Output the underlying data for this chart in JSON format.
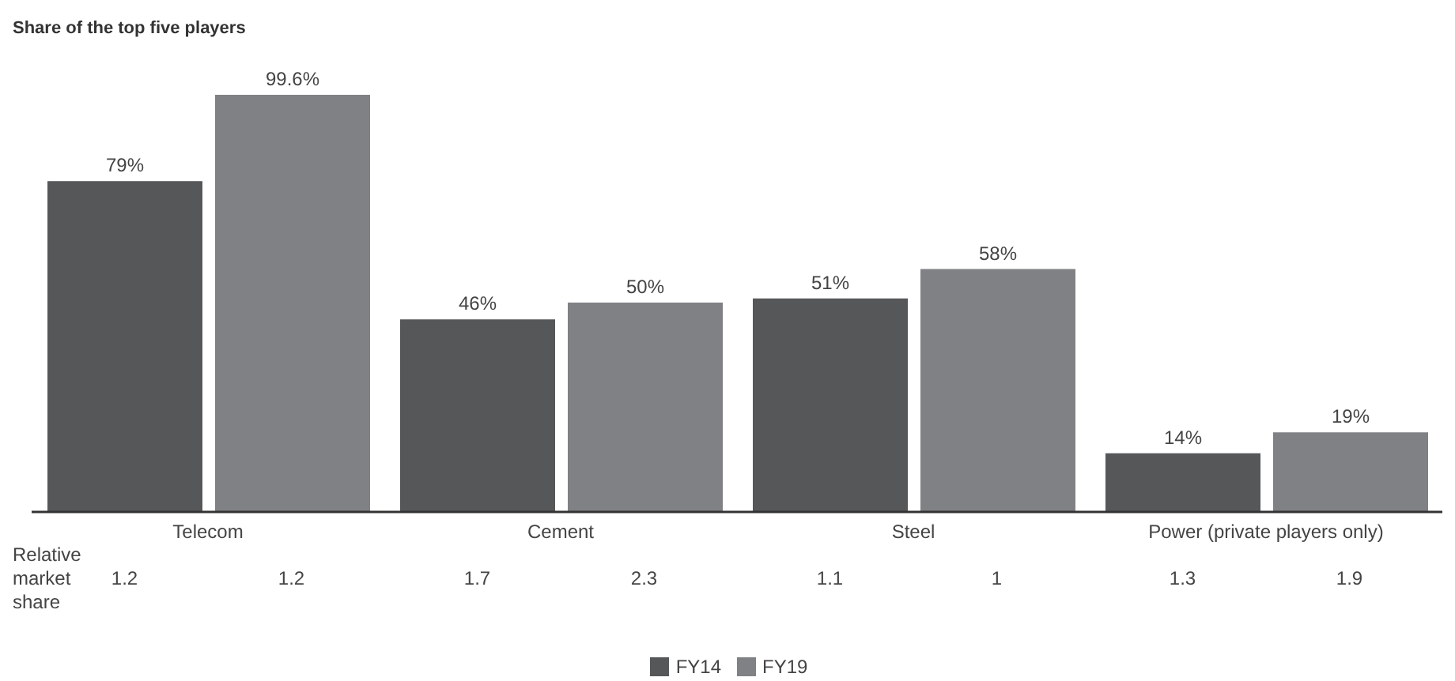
{
  "chart_data": {
    "type": "bar",
    "title": "Share of the top five players",
    "categories": [
      "Telecom",
      "Cement",
      "Steel",
      "Power (private players only)"
    ],
    "series": [
      {
        "name": "FY14",
        "color": "#555759",
        "values": [
          79,
          46,
          51,
          14
        ],
        "value_labels": [
          "79%",
          "46%",
          "51%",
          "14%"
        ]
      },
      {
        "name": "FY19",
        "color": "#808184",
        "values": [
          99.6,
          50,
          58,
          19
        ],
        "value_labels": [
          "99.6%",
          "50%",
          "58%",
          "19%"
        ]
      }
    ],
    "annotations": [
      "Relative market share",
      "1.2",
      "1.2",
      "1.7",
      "2.3",
      "1.1",
      "1",
      "1.3",
      "1.9"
    ],
    "legend": "bottom"
  }
}
